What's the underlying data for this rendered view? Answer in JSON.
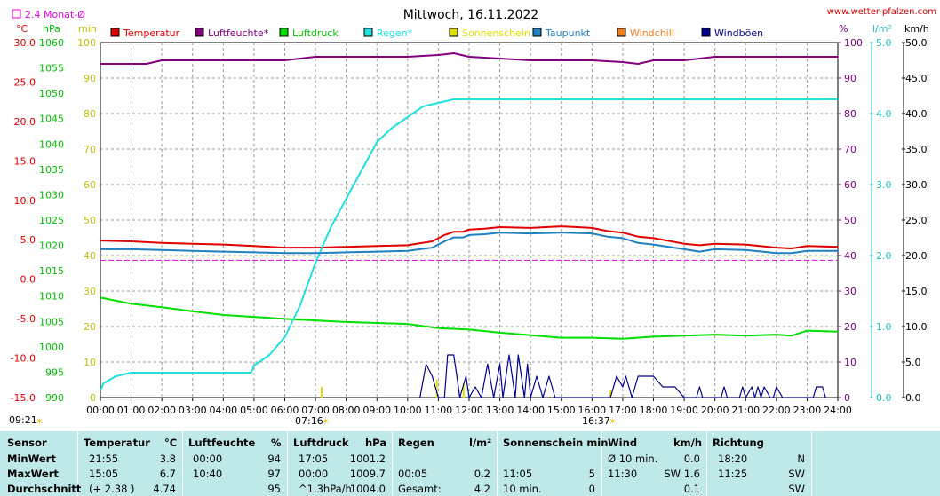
{
  "header": {
    "title": "Mittwoch, 16.11.2022",
    "site": "www.wetter-pfalzen.com",
    "legend_month": "2.4 Monat-Ø",
    "time_now": "09:21",
    "sunrise": "07:16",
    "sunset": "16:37"
  },
  "axis_units": {
    "temp": "°C",
    "pressure": "hPa",
    "minutes": "min",
    "percent": "%",
    "rain": "l/m²",
    "wind": "km/h"
  },
  "axis_ticks": {
    "temp": [
      "30.0",
      "25.0",
      "20.0",
      "15.0",
      "10.0",
      "5.0",
      "0.0",
      "-5.0",
      "-10.0",
      "-15.0"
    ],
    "pressure": [
      "1060",
      "1055",
      "1050",
      "1045",
      "1040",
      "1035",
      "1030",
      "1025",
      "1020",
      "1015",
      "1010",
      "1005",
      "1000",
      "995",
      "990"
    ],
    "minutes": [
      "100",
      "90",
      "80",
      "70",
      "60",
      "50",
      "40",
      "30",
      "20",
      "10",
      "0"
    ],
    "percent": [
      "100",
      "90",
      "80",
      "70",
      "60",
      "50",
      "40",
      "30",
      "20",
      "10",
      "0"
    ],
    "rain": [
      "5.0",
      "4.0",
      "3.0",
      "2.0",
      "1.0",
      "0.0"
    ],
    "wind": [
      "50.0",
      "45.0",
      "40.0",
      "35.0",
      "30.0",
      "25.0",
      "20.0",
      "15.0",
      "10.0",
      "5.0",
      "0.0"
    ],
    "time": [
      "00:00",
      "01:00",
      "02:00",
      "03:00",
      "04:00",
      "05:00",
      "06:00",
      "07:00",
      "08:00",
      "09:00",
      "10:00",
      "11:00",
      "12:00",
      "13:00",
      "14:00",
      "15:00",
      "16:00",
      "17:00",
      "18:00",
      "19:00",
      "20:00",
      "21:00",
      "22:00",
      "23:00",
      "24:00"
    ]
  },
  "colors": {
    "temperature": "#e00000",
    "humidity": "#800080",
    "pressure": "#00e000",
    "rain": "#20e0e0",
    "sunshine": "#e0e000",
    "dewpoint": "#2080c0",
    "windchill": "#f08020",
    "gusts": "#000090",
    "month_avg": "#e000e0"
  },
  "chart_data": {
    "type": "line",
    "title": "Mittwoch, 16.11.2022",
    "x_unit": "hour of day",
    "xlim": [
      0,
      24
    ],
    "legend_placement": "top",
    "grid": true,
    "series": [
      {
        "name": "Temperatur",
        "key": "temperature",
        "axis": "temp",
        "ylim": [
          -15,
          30
        ],
        "x": [
          0,
          1,
          2,
          3,
          4,
          5,
          6,
          7,
          8,
          9,
          10,
          10.8,
          11.2,
          11.5,
          11.8,
          12,
          12.5,
          13,
          14,
          15,
          16,
          16.5,
          17,
          17.5,
          18,
          19,
          19.5,
          20,
          21,
          22,
          22.5,
          23,
          24
        ],
        "y": [
          4.9,
          4.8,
          4.6,
          4.5,
          4.4,
          4.2,
          4.0,
          4.0,
          4.1,
          4.2,
          4.3,
          4.8,
          5.6,
          6.0,
          6.0,
          6.3,
          6.4,
          6.6,
          6.5,
          6.7,
          6.5,
          6.1,
          5.9,
          5.4,
          5.2,
          4.5,
          4.3,
          4.5,
          4.4,
          4.0,
          3.9,
          4.2,
          4.1
        ]
      },
      {
        "name": "Luftfeuchte*",
        "key": "humidity",
        "axis": "percent",
        "ylim": [
          0,
          100
        ],
        "x": [
          0,
          1.5,
          2,
          3,
          4,
          5,
          6,
          7,
          8,
          9,
          10,
          11,
          11.5,
          12,
          13,
          14,
          15,
          16,
          17,
          17.5,
          18,
          19,
          20,
          21,
          22,
          23,
          24
        ],
        "y": [
          94,
          94,
          95,
          95,
          95,
          95,
          95,
          96,
          96,
          96,
          96,
          96.5,
          97,
          96,
          95.5,
          95,
          95,
          95,
          94.5,
          94,
          95,
          95,
          96,
          96,
          96,
          96,
          96
        ]
      },
      {
        "name": "Luftdruck",
        "key": "pressure",
        "axis": "pressure",
        "ylim": [
          990,
          1060
        ],
        "x": [
          0,
          1,
          2,
          3,
          4,
          5,
          6,
          7,
          8,
          9,
          10,
          11,
          12,
          13,
          14,
          15,
          16,
          17,
          18,
          19,
          20,
          21,
          22,
          22.5,
          23,
          24
        ],
        "y": [
          1009.7,
          1008.5,
          1007.8,
          1007.0,
          1006.3,
          1005.9,
          1005.5,
          1005.2,
          1004.9,
          1004.7,
          1004.5,
          1003.7,
          1003.4,
          1002.8,
          1002.3,
          1001.8,
          1001.8,
          1001.6,
          1002.0,
          1002.2,
          1002.4,
          1002.2,
          1002.4,
          1002.2,
          1003.2,
          1003.0
        ]
      },
      {
        "name": "Regen*",
        "key": "rain",
        "axis": "rain",
        "ylim": [
          0,
          5
        ],
        "x": [
          0,
          0.1,
          0.5,
          1,
          2,
          3,
          4,
          4.9,
          5,
          5.5,
          6,
          6.5,
          7,
          7.5,
          8,
          8.5,
          9,
          9.5,
          10,
          10.5,
          11,
          11.5,
          12,
          13,
          14,
          15,
          16,
          17,
          18,
          19,
          20,
          21,
          22,
          23,
          24
        ],
        "y": [
          0.1,
          0.2,
          0.3,
          0.35,
          0.35,
          0.35,
          0.35,
          0.35,
          0.45,
          0.6,
          0.85,
          1.3,
          1.9,
          2.4,
          2.8,
          3.2,
          3.6,
          3.8,
          3.95,
          4.1,
          4.15,
          4.2,
          4.2,
          4.2,
          4.2,
          4.2,
          4.2,
          4.2,
          4.2,
          4.2,
          4.2,
          4.2,
          4.2,
          4.2,
          4.2
        ]
      },
      {
        "name": "Sonnenschein",
        "key": "sunshine",
        "axis": "minutes",
        "ylim": [
          0,
          100
        ],
        "x": [
          7.2,
          10.95,
          11.82,
          16.6
        ],
        "y": [
          3,
          5,
          4,
          2
        ]
      },
      {
        "name": "Taupunkt",
        "key": "dewpoint",
        "axis": "temp",
        "ylim": [
          -15,
          30
        ],
        "x": [
          0,
          1,
          2,
          3,
          4,
          5,
          6,
          7,
          8,
          9,
          10,
          10.8,
          11.2,
          11.5,
          11.8,
          12,
          12.5,
          13,
          14,
          15,
          16,
          16.5,
          17,
          17.5,
          18,
          19,
          19.5,
          20,
          21,
          22,
          22.5,
          23,
          24
        ],
        "y": [
          3.8,
          3.8,
          3.7,
          3.6,
          3.5,
          3.4,
          3.3,
          3.3,
          3.4,
          3.5,
          3.6,
          4.0,
          4.8,
          5.3,
          5.3,
          5.6,
          5.7,
          5.9,
          5.8,
          5.9,
          5.8,
          5.4,
          5.2,
          4.6,
          4.4,
          3.8,
          3.5,
          3.8,
          3.7,
          3.3,
          3.3,
          3.6,
          3.6
        ]
      },
      {
        "name": "Windchill",
        "key": "windchill",
        "axis": "temp",
        "ylim": [
          -15,
          30
        ],
        "x": [],
        "y": []
      },
      {
        "name": "Windböen",
        "key": "gusts",
        "axis": "wind",
        "ylim": [
          0,
          50
        ],
        "x": [
          10.4,
          10.6,
          10.8,
          11.0,
          11.2,
          11.3,
          11.5,
          11.6,
          11.7,
          11.9,
          12.0,
          12.2,
          12.4,
          12.6,
          12.8,
          13.0,
          13.1,
          13.3,
          13.5,
          13.6,
          13.8,
          13.9,
          14.0,
          14.2,
          14.4,
          14.6,
          14.8,
          15.0,
          15.2,
          15.4,
          16.6,
          16.8,
          17.0,
          17.1,
          17.3,
          17.5,
          17.7,
          18.0,
          18.3,
          18.5,
          18.7,
          19.0,
          19.4,
          19.5,
          19.6,
          20.2,
          20.3,
          20.4,
          20.8,
          20.9,
          21.0,
          21.2,
          21.3,
          21.4,
          21.5,
          21.6,
          21.8,
          21.9,
          22.0,
          22.2,
          22.4,
          23.2,
          23.3,
          23.5,
          23.6
        ],
        "y": [
          0,
          4.7,
          3.0,
          0,
          0,
          6.0,
          6.0,
          3.0,
          0,
          3.0,
          0,
          1.5,
          0,
          4.7,
          0,
          4.7,
          0,
          6.0,
          0,
          6.0,
          0,
          4.7,
          0,
          3.0,
          0,
          3.0,
          0,
          0,
          0,
          0,
          0,
          3.0,
          1.5,
          3.0,
          0,
          3.0,
          3.0,
          3.0,
          1.5,
          1.5,
          1.5,
          0,
          0,
          1.5,
          0,
          0,
          1.5,
          0,
          0,
          1.5,
          0,
          1.5,
          0,
          1.5,
          0,
          1.5,
          0,
          0,
          1.5,
          0,
          0,
          0,
          1.5,
          1.5,
          0
        ]
      }
    ],
    "reference_lines": [
      {
        "name": "2.4 Monat-Ø",
        "key": "month_avg",
        "axis": "temp",
        "value": 2.4
      }
    ]
  },
  "stats": {
    "headers": {
      "sensor": "Sensor",
      "temperature": "Temperatur",
      "temp_unit": "°C",
      "humidity": "Luftfeuchte",
      "humidity_unit": "%",
      "pressure": "Luftdruck",
      "pressure_unit": "hPa",
      "rain": "Regen",
      "rain_unit": "l/m²",
      "sunshine": "Sonnenschein min",
      "wind": "Wind",
      "wind_unit": "km/h",
      "direction": "Richtung"
    },
    "rows": [
      {
        "label": "MinWert",
        "temp_time": "21:55",
        "temp_val": "3.8",
        "hum_time": "00:00",
        "hum_val": "94",
        "press_time": "17:05",
        "press_val": "1001.2",
        "rain_time": "",
        "rain_val": "",
        "sun_time": "",
        "sun_val": "",
        "wind_time": "Ø 10 min.",
        "wind_val": "0.0",
        "dir_time": "18:20",
        "dir_val": "N"
      },
      {
        "label": "MaxWert",
        "temp_time": "15:05",
        "temp_val": "6.7",
        "hum_time": "10:40",
        "hum_val": "97",
        "press_time": "00:00",
        "press_val": "1009.7",
        "rain_time": "00:05",
        "rain_val": "0.2",
        "sun_time": "11:05",
        "sun_val": "5",
        "wind_time": "11:30",
        "wind_val": "SW 1.6",
        "dir_time": "11:25",
        "dir_val": "SW"
      },
      {
        "label": "Durchschnitt",
        "temp_time": "(+ 2.38 )",
        "temp_val": "4.74",
        "hum_time": "",
        "hum_val": "95",
        "press_time": "^1.3hPa/h",
        "press_val": "1004.0",
        "rain_time": "Gesamt:",
        "rain_val": "4.2",
        "sun_time": "10 min.",
        "sun_val": "0",
        "wind_time": "",
        "wind_val": "0.1",
        "dir_time": "",
        "dir_val": "SW"
      }
    ]
  }
}
